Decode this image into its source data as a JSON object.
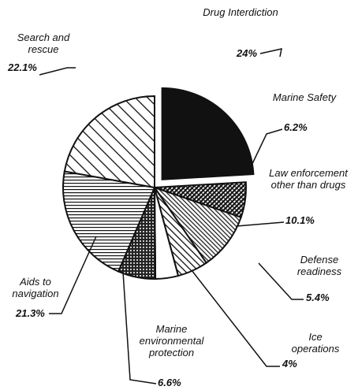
{
  "chart_data": {
    "type": "pie",
    "categories": [
      "Drug Interdiction",
      "Marine Safety",
      "Law enforcement other than drugs",
      "Defense readiness",
      "Ice operations",
      "Marine environmental protection",
      "Aids to navigation",
      "Search and rescue"
    ],
    "values": [
      24,
      6.2,
      10.1,
      5.4,
      4,
      6.6,
      21.3,
      22.1
    ],
    "value_labels": [
      "24%",
      "6.2%",
      "10.1%",
      "5.4%",
      "4%",
      "6.6%",
      "21.3%",
      "22.1%"
    ]
  }
}
